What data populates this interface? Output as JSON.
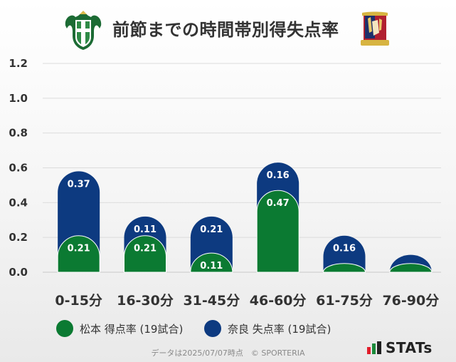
{
  "title": "前節までの時間帯別得失点率",
  "colors": {
    "matsumoto": "#0b7a32",
    "nara": "#0d3a80",
    "stats_red": "#e11d2a",
    "stats_green": "#1a8a3a"
  },
  "icons": {
    "left_logo": "matsumoto-yamaga-crest-icon",
    "right_logo": "nara-club-crest-icon",
    "stats_logo": "stats-logo-icon"
  },
  "chart_data": {
    "type": "bar",
    "categories": [
      "0-15分",
      "16-30分",
      "31-45分",
      "46-60分",
      "61-75分",
      "76-90分"
    ],
    "series": [
      {
        "name": "松本 得点率 (19試合)",
        "values": [
          0.21,
          0.21,
          0.11,
          0.47,
          0.05,
          0.05
        ],
        "labels": [
          "0.21",
          "0.21",
          "0.11",
          "0.47",
          "",
          ""
        ]
      },
      {
        "name": "奈良 失点率 (19試合)",
        "values": [
          0.37,
          0.11,
          0.21,
          0.16,
          0.16,
          0.05
        ],
        "labels": [
          "0.37",
          "0.11",
          "0.21",
          "0.16",
          "0.16",
          ""
        ]
      }
    ],
    "stacked": true,
    "ylim": [
      0,
      1.2
    ],
    "yticks": [
      "0.0",
      "0.2",
      "0.4",
      "0.6",
      "0.8",
      "1.0",
      "1.2"
    ],
    "grid": true,
    "legend": "bottom"
  },
  "legend": {
    "matsumoto": "松本 得点率 (19試合)",
    "nara": "奈良 失点率 (19試合)"
  },
  "footer": "データは2025/07/07時点　© SPORTERIA",
  "stats_label": "STATs"
}
